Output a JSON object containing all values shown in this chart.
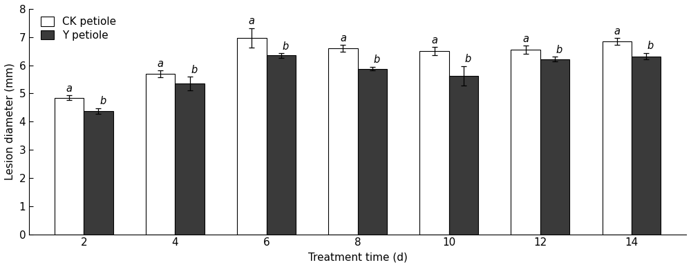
{
  "categories": [
    2,
    4,
    6,
    8,
    10,
    12,
    14
  ],
  "ck_values": [
    4.85,
    5.7,
    6.97,
    6.6,
    6.5,
    6.55,
    6.85
  ],
  "y_values": [
    4.38,
    5.35,
    6.35,
    5.88,
    5.62,
    6.22,
    6.32
  ],
  "ck_errors": [
    0.08,
    0.12,
    0.35,
    0.12,
    0.15,
    0.15,
    0.12
  ],
  "y_errors": [
    0.1,
    0.25,
    0.08,
    0.07,
    0.35,
    0.08,
    0.12
  ],
  "ck_labels": [
    "a",
    "a",
    "a",
    "a",
    "a",
    "a",
    "a"
  ],
  "y_labels": [
    "b",
    "b",
    "b",
    "b",
    "b",
    "b",
    "b"
  ],
  "bar_width": 0.32,
  "ck_color": "#ffffff",
  "y_color": "#3a3a3a",
  "edge_color": "#000000",
  "xlabel": "Treatment time (d)",
  "ylabel": "Lesion diameter (mm)",
  "ylim": [
    0,
    8
  ],
  "yticks": [
    0,
    1,
    2,
    3,
    4,
    5,
    6,
    7,
    8
  ],
  "legend_labels": [
    "CK petiole",
    "Y petiole"
  ],
  "label_fontsize": 11,
  "tick_fontsize": 11,
  "annot_fontsize": 10.5
}
